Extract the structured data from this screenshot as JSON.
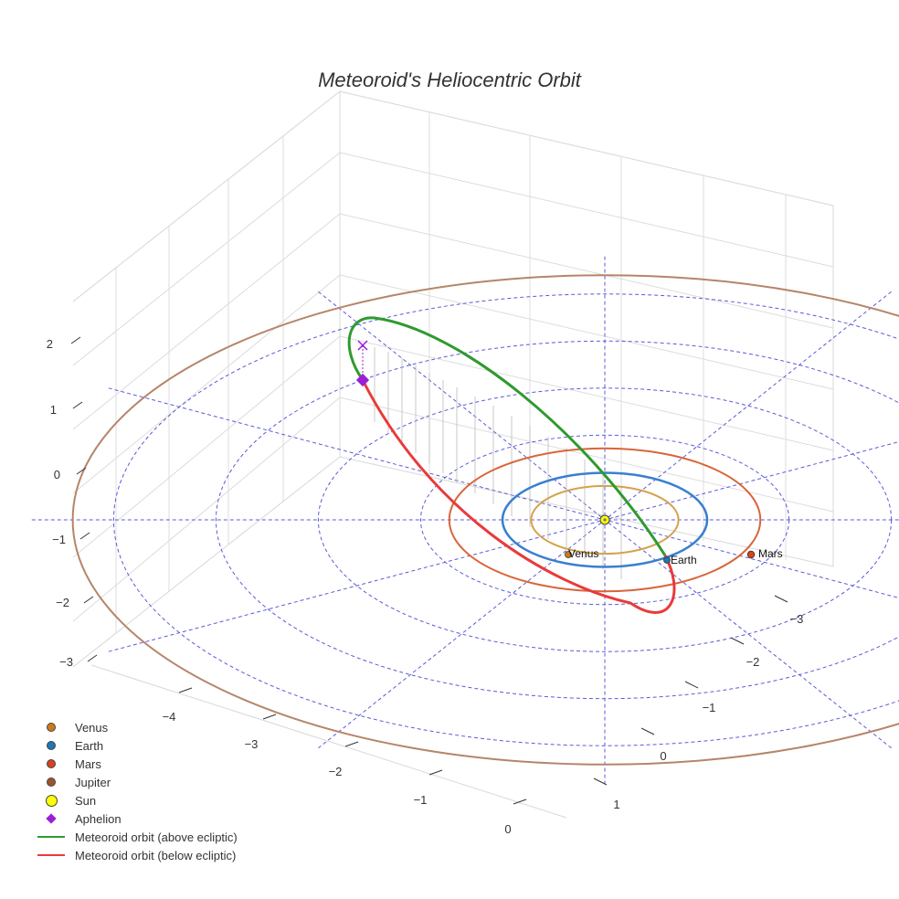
{
  "chart_data": {
    "type": "scatter3d",
    "title": "Meteoroid's Heliocentric Orbit",
    "xlabel": "",
    "ylabel": "",
    "zlabel": "",
    "x_ticks": [
      "−3",
      "−2",
      "−1",
      "0",
      "1"
    ],
    "y_ticks": [
      "−4",
      "−3",
      "−2",
      "−1",
      "0"
    ],
    "z_ticks": [
      "2",
      "1",
      "0",
      "−1",
      "−2",
      "−3"
    ],
    "planet_labels": [
      "Venus",
      "Earth",
      "Mars"
    ],
    "bodies": [
      {
        "name": "Venus",
        "orbit_radius_au": 0.72,
        "color": "#d4a24e",
        "dot_color": "#cc7a1c"
      },
      {
        "name": "Earth",
        "orbit_radius_au": 1.0,
        "color": "#3a7fd0",
        "dot_color": "#1f77b4"
      },
      {
        "name": "Mars",
        "orbit_radius_au": 1.52,
        "color": "#d9653a",
        "dot_color": "#d9421c"
      },
      {
        "name": "Jupiter",
        "orbit_radius_au": 5.2,
        "color": "#b5856a",
        "dot_color": "#a0522d"
      }
    ],
    "sun": {
      "name": "Sun",
      "color": "#ffff00"
    },
    "aphelion": {
      "name": "Aphelion",
      "color": "#9a1fd6"
    },
    "meteoroid_orbit": {
      "above": {
        "name": "Meteoroid orbit (above ecliptic)",
        "color": "#2f9a2f"
      },
      "below": {
        "name": "Meteoroid orbit (below ecliptic)",
        "color": "#e83b3b"
      }
    },
    "legend": [
      {
        "label": "Venus",
        "kind": "dot",
        "color": "#cc7a1c"
      },
      {
        "label": "Earth",
        "kind": "dot",
        "color": "#1f77b4"
      },
      {
        "label": "Mars",
        "kind": "dot",
        "color": "#d9421c"
      },
      {
        "label": "Jupiter",
        "kind": "dot",
        "color": "#a0522d"
      },
      {
        "label": "Sun",
        "kind": "bigdot",
        "color": "#ffff00"
      },
      {
        "label": "Aphelion",
        "kind": "diamond",
        "color": "#9a1fd6"
      },
      {
        "label": "Meteoroid orbit (above ecliptic)",
        "kind": "line",
        "color": "#2f9a2f"
      },
      {
        "label": "Meteoroid orbit (below ecliptic)",
        "kind": "line",
        "color": "#e83b3b"
      }
    ],
    "legend_position": "bottom-left",
    "grid": true
  }
}
